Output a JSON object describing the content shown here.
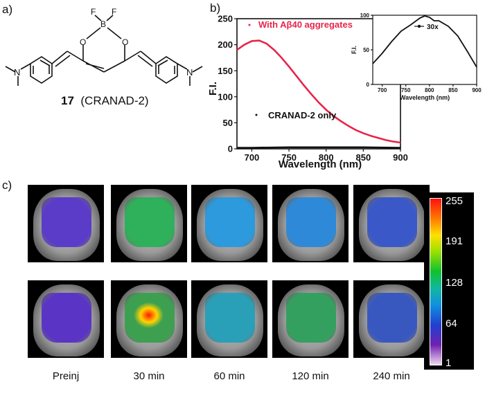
{
  "panels": {
    "a": "a)",
    "b": "b)",
    "c": "c)"
  },
  "molecule": {
    "number": "17",
    "name": "(CRANAD-2)",
    "atoms": {
      "F1": "F",
      "F2": "F",
      "B": "B",
      "O1": "O",
      "O2": "O",
      "N1": "N",
      "N2": "N"
    }
  },
  "chart_data": [
    {
      "type": "line",
      "id": "main-spectrum",
      "xlabel": "Wavelength (nm)",
      "ylabel": "F.I.",
      "xlim": [
        680,
        900
      ],
      "ylim": [
        0,
        250
      ],
      "xticks": [
        700,
        750,
        800,
        850,
        900
      ],
      "yticks": [
        0,
        50,
        100,
        150,
        200,
        250
      ],
      "series": [
        {
          "name": "With Aβ40 aggregates",
          "color": "#e8244a",
          "x": [
            680,
            690,
            700,
            710,
            720,
            730,
            740,
            750,
            760,
            770,
            780,
            790,
            800,
            810,
            820,
            830,
            840,
            850,
            860,
            870,
            880,
            890,
            900
          ],
          "y": [
            190,
            200,
            207,
            208,
            202,
            190,
            175,
            158,
            140,
            122,
            105,
            89,
            75,
            63,
            53,
            44,
            36,
            30,
            25,
            21,
            17,
            14,
            12
          ]
        },
        {
          "name": "CRANAD-2 only",
          "color": "#111111",
          "x": [
            680,
            700,
            750,
            800,
            850,
            900
          ],
          "y": [
            2,
            2,
            3,
            3,
            3,
            2
          ]
        }
      ]
    },
    {
      "type": "line",
      "id": "inset-spectrum",
      "legend": "30x",
      "xlabel": "Wavelength (nm)",
      "ylabel": "F.I.",
      "xlim": [
        680,
        900
      ],
      "ylim": [
        0,
        100
      ],
      "xticks": [
        700,
        750,
        800,
        850,
        900
      ],
      "yticks": [
        0,
        50,
        100
      ],
      "series": [
        {
          "name": "30x",
          "color": "#111111",
          "x": [
            680,
            700,
            720,
            740,
            760,
            780,
            790,
            800,
            810,
            820,
            840,
            860,
            880,
            900
          ],
          "y": [
            30,
            45,
            62,
            77,
            86,
            96,
            99,
            97,
            92,
            92,
            84,
            70,
            48,
            25
          ]
        }
      ]
    }
  ],
  "imaging": {
    "times": [
      "Preinj",
      "30 min",
      "60 min",
      "120 min",
      "240 min"
    ],
    "colorbar": {
      "ticks": [
        "255",
        "191",
        "128",
        "64",
        "1"
      ]
    },
    "colors": {
      "row1": [
        "#5a3cc8",
        "#2fb05a",
        "#2c9adc",
        "#2e8ad8",
        "#3a58c8"
      ],
      "row2": [
        "#5a34c4",
        "#3ca050",
        "#2aa0b8",
        "#34a060",
        "#3858c0"
      ]
    }
  }
}
